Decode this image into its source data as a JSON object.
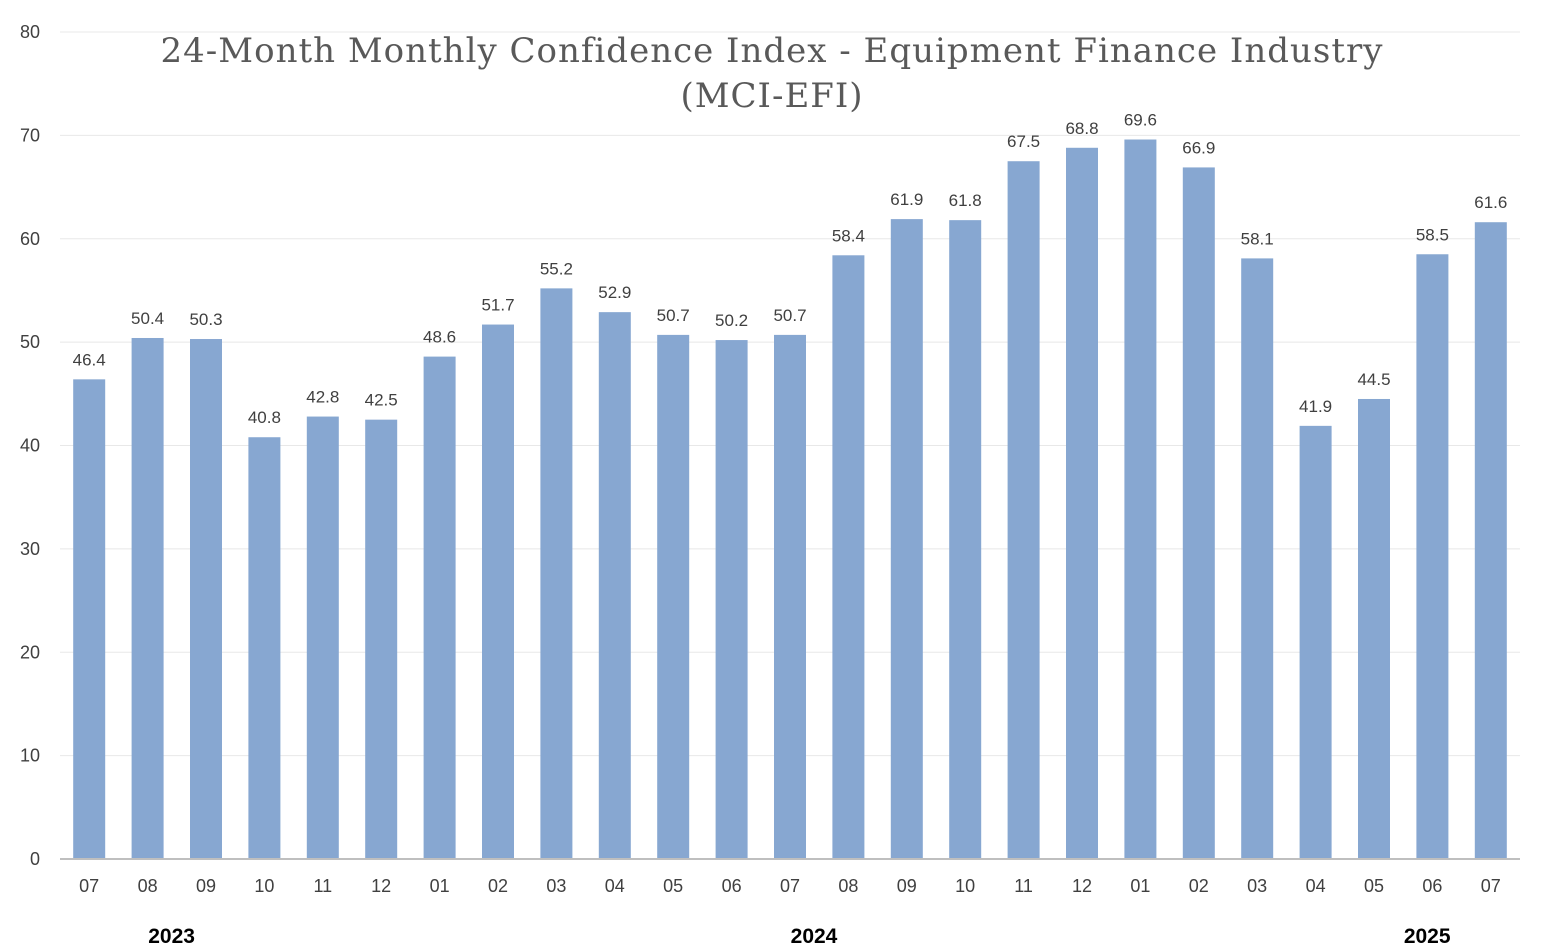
{
  "chart_data": {
    "type": "bar",
    "title": "24-Month Monthly Confidence Index - Equipment Finance Industry (MCI-EFI)",
    "title_lines": [
      "24-Month Monthly Confidence Index - Equipment Finance Industry",
      "(MCI-EFI)"
    ],
    "xlabel": "",
    "ylabel": "",
    "ylim": [
      0,
      80
    ],
    "yticks": [
      0,
      10,
      20,
      30,
      40,
      50,
      60,
      70,
      80
    ],
    "grid": true,
    "categories": [
      "07",
      "08",
      "09",
      "10",
      "11",
      "12",
      "01",
      "02",
      "03",
      "04",
      "05",
      "06",
      "07",
      "08",
      "09",
      "10",
      "11",
      "12",
      "01",
      "02",
      "03",
      "04",
      "05",
      "06",
      "07"
    ],
    "values": [
      46.4,
      50.4,
      50.3,
      40.8,
      42.8,
      42.5,
      48.6,
      51.7,
      55.2,
      52.9,
      50.7,
      50.2,
      50.7,
      58.4,
      61.9,
      61.8,
      67.5,
      68.8,
      69.6,
      66.9,
      58.1,
      41.9,
      44.5,
      58.5,
      61.6
    ],
    "year_groups": [
      {
        "label": "2023",
        "center_index": 1
      },
      {
        "label": "2024",
        "center_index": 12
      },
      {
        "label": "2025",
        "center_index": 22.5
      }
    ],
    "bar_color": "#87a7d1"
  }
}
